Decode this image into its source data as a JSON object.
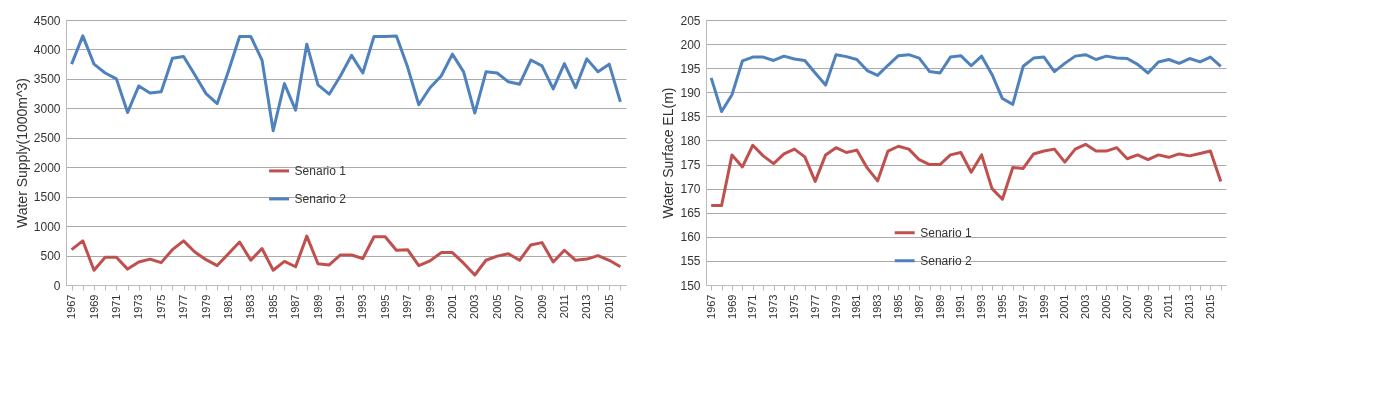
{
  "chart_data": [
    {
      "type": "line",
      "ylabel": "Water Supply(1000m^3)",
      "categories": [
        "1967",
        null,
        "1969",
        null,
        "1971",
        null,
        "1973",
        null,
        "1975",
        null,
        "1977",
        null,
        "1979",
        null,
        "1981",
        null,
        "1983",
        null,
        "1985",
        null,
        "1987",
        null,
        "1989",
        null,
        "1991",
        null,
        "1993",
        null,
        "1995",
        null,
        "1997",
        null,
        "1999",
        null,
        "2001",
        null,
        "2003",
        null,
        "2005",
        null,
        "2007",
        null,
        "2009",
        null,
        "2011",
        null,
        "2013",
        null,
        "2015",
        null
      ],
      "ylim": [
        0,
        4500
      ],
      "yticks": [
        0,
        500,
        1000,
        1500,
        2000,
        2500,
        3000,
        3500,
        4000,
        4500
      ],
      "grid": "y",
      "legend": "bottom",
      "series": [
        {
          "name": "Senario 1",
          "color": "#c0504d",
          "values": [
            600,
            750,
            250,
            470,
            470,
            270,
            390,
            440,
            380,
            600,
            750,
            560,
            430,
            330,
            530,
            730,
            420,
            620,
            250,
            400,
            310,
            830,
            360,
            340,
            510,
            510,
            450,
            820,
            820,
            590,
            600,
            330,
            410,
            550,
            550,
            370,
            170,
            420,
            490,
            530,
            420,
            680,
            720,
            390,
            590,
            420,
            440,
            500,
            420,
            310
          ]
        },
        {
          "name": "Senario 2",
          "color": "#4f81bd",
          "values": [
            3750,
            4230,
            3750,
            3600,
            3500,
            2930,
            3380,
            3260,
            3280,
            3850,
            3880,
            3570,
            3250,
            3080,
            3630,
            4220,
            4220,
            3820,
            2620,
            3420,
            2970,
            4090,
            3400,
            3240,
            3550,
            3900,
            3600,
            4220,
            4220,
            4230,
            3700,
            3060,
            3350,
            3550,
            3920,
            3620,
            2920,
            3620,
            3600,
            3450,
            3410,
            3820,
            3720,
            3330,
            3760,
            3350,
            3840,
            3620,
            3750,
            3110
          ]
        }
      ]
    },
    {
      "type": "line",
      "ylabel": "Water Surface EL(m)",
      "categories": [
        "1967",
        null,
        "1969",
        null,
        "1971",
        null,
        "1973",
        null,
        "1975",
        null,
        "1977",
        null,
        "1979",
        null,
        "1981",
        null,
        "1983",
        null,
        "1985",
        null,
        "1987",
        null,
        "1989",
        null,
        "1991",
        null,
        "1993",
        null,
        "1995",
        null,
        "1997",
        null,
        "1999",
        null,
        "2001",
        null,
        "2003",
        null,
        "2005",
        null,
        "2007",
        null,
        "2009",
        null,
        "2011",
        null,
        "2013",
        null,
        "2015",
        null
      ],
      "ylim": [
        150,
        205
      ],
      "yticks": [
        150,
        155,
        160,
        165,
        170,
        175,
        180,
        185,
        190,
        195,
        200,
        205
      ],
      "grid": "y",
      "legend": "bottom",
      "series": [
        {
          "name": "Senario 1",
          "color": "#c0504d",
          "values": [
            166.5,
            166.5,
            177,
            174.5,
            179,
            176.8,
            175.2,
            177.2,
            178.2,
            176.6,
            171.5,
            177,
            178.5,
            177.5,
            178,
            174.3,
            171.6,
            177.8,
            178.8,
            178.2,
            176,
            175,
            175,
            177,
            177.5,
            173.4,
            177,
            170,
            167.8,
            174.4,
            174.2,
            177.2,
            177.8,
            178.2,
            175.5,
            178.2,
            179.2,
            177.8,
            177.8,
            178.5,
            176.2,
            177,
            176,
            177,
            176.5,
            177.2,
            176.8,
            177.3,
            177.8,
            171.5
          ]
        },
        {
          "name": "Senario 2",
          "color": "#4f81bd",
          "values": [
            193,
            186,
            189.5,
            196.5,
            197.3,
            197.3,
            196.6,
            197.5,
            196.9,
            196.6,
            194,
            191.5,
            197.8,
            197.4,
            196.8,
            194.5,
            193.5,
            195.6,
            197.6,
            197.8,
            197.1,
            194.3,
            194,
            197.3,
            197.6,
            195.5,
            197.5,
            193.7,
            188.7,
            187.5,
            195.4,
            197.1,
            197.3,
            194.3,
            196,
            197.5,
            197.8,
            196.8,
            197.5,
            197.1,
            197,
            195.8,
            194,
            196.3,
            196.8,
            196,
            197,
            196.3,
            197.3,
            195.4
          ]
        }
      ]
    }
  ]
}
